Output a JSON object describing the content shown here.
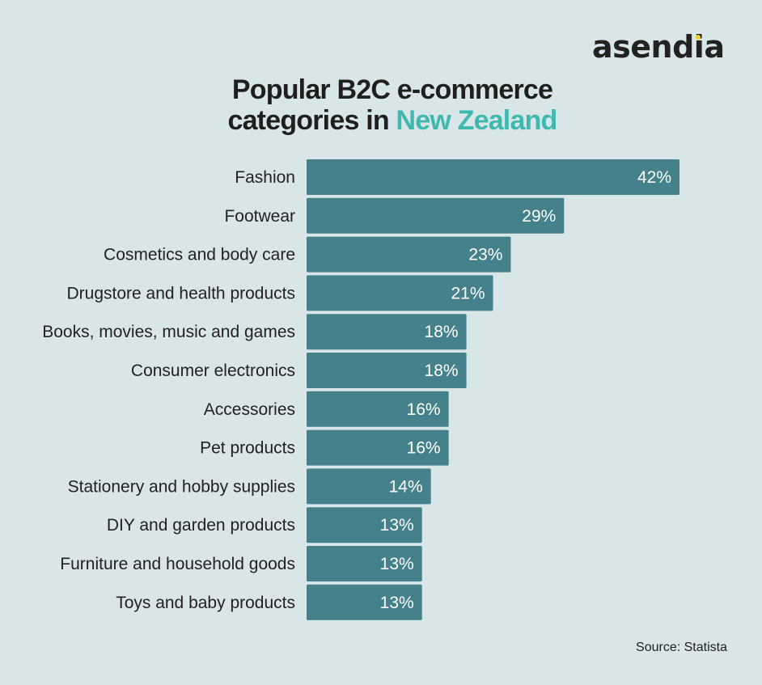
{
  "brand": {
    "name": "asendia",
    "dot_color": "#f2d21f"
  },
  "title": {
    "line1": "Popular B2C e-commerce",
    "line2_prefix": "categories in ",
    "line2_accent": "New Zealand",
    "accent_color": "#3fb9b0"
  },
  "source": "Source: Statista",
  "colors": {
    "bar": "#44818b",
    "background": "#d8e6e7"
  },
  "chart_data": {
    "type": "bar",
    "orientation": "horizontal",
    "categories": [
      "Fashion",
      "Footwear",
      "Cosmetics and body care",
      "Drugstore and health products",
      "Books, movies, music and games",
      "Consumer electronics",
      "Accessories",
      "Pet products",
      "Stationery and hobby supplies",
      "DIY and garden products",
      "Furniture and household goods",
      "Toys and baby products"
    ],
    "values": [
      42,
      29,
      23,
      21,
      18,
      18,
      16,
      16,
      14,
      13,
      13,
      13
    ],
    "value_labels": [
      "42%",
      "29%",
      "23%",
      "21%",
      "18%",
      "18%",
      "16%",
      "16%",
      "14%",
      "13%",
      "13%",
      "13%"
    ],
    "unit": "%",
    "grid": false,
    "legend": "none"
  }
}
